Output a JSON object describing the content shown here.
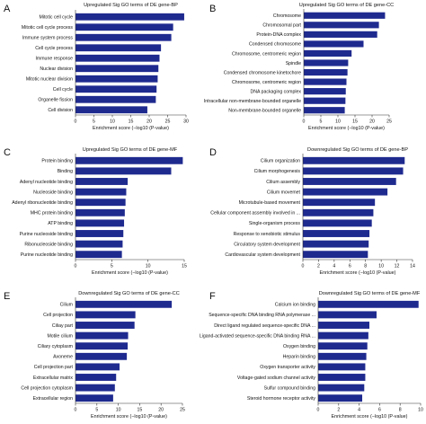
{
  "bar_color": "#1f2a8f",
  "chart_data": [
    {
      "type": "bar",
      "orientation": "horizontal",
      "letter": "A",
      "title": "Upregulated Sig GO terms of DE gene-BP",
      "xlabel": "Enrichment score (−log10 (P-value)",
      "xlim": [
        0,
        30
      ],
      "xticks": [
        0,
        5,
        10,
        15,
        20,
        25,
        30
      ],
      "categories": [
        "Mitotic cell cycle",
        "Mitotic cell cycle process",
        "Immune system process",
        "Cell cycle process",
        "Immune response",
        "Nuclear division",
        "Mitotic nuclear division",
        "Cell cycle",
        "Organelle fission",
        "Cell division"
      ],
      "values": [
        29.5,
        26.5,
        26.0,
        23.2,
        22.8,
        22.5,
        22.3,
        22.0,
        21.8,
        19.5
      ]
    },
    {
      "type": "bar",
      "orientation": "horizontal",
      "letter": "B",
      "title": "Upregulated Sig GO terms of DE gene-CC",
      "xlabel": "Enrichment score (−log10 (P-value)",
      "xlim": [
        0,
        25
      ],
      "xticks": [
        0,
        5,
        10,
        15,
        20,
        25
      ],
      "categories": [
        "Chromosome",
        "Chromosomal part",
        "Protein-DNA complex",
        "Condensed chromosome",
        "Chromosome, centromeric region",
        "Spindle",
        "Condensed chromosome kinetochore",
        "Chromosome, centromeric region",
        "DNA packaging complex",
        "Intracellular non-membrane-bounded organelle",
        "Non-membrane-bounded organelle"
      ],
      "values": [
        23.8,
        22.0,
        21.5,
        17.5,
        14.0,
        13.0,
        12.8,
        12.5,
        12.3,
        12.2,
        12.0
      ]
    },
    {
      "type": "bar",
      "orientation": "horizontal",
      "letter": "C",
      "title": "Upregulated Sig GO terms of DE gene-MF",
      "xlabel": "Enrichment score (−log10 (P-value)",
      "xlim": [
        0,
        15
      ],
      "xticks": [
        0,
        5,
        10,
        15
      ],
      "categories": [
        "Protein binding",
        "Binding",
        "Adenyl nucleotide binding",
        "Nucleoside binding",
        "Adenyl ribonucleotide binding",
        "MHC protein binding",
        "ATP binding",
        "Purine nucleoside binding",
        "Ribonucleoside binding",
        "Purine nucleotide binding"
      ],
      "values": [
        14.8,
        13.2,
        7.2,
        7.0,
        6.9,
        6.8,
        6.7,
        6.6,
        6.5,
        6.4
      ]
    },
    {
      "type": "bar",
      "orientation": "horizontal",
      "letter": "D",
      "title": "Downregulated Sig GO terms of DE gene-BP",
      "xlabel": "Enrichment score (−log10 (P-value)",
      "xlim": [
        0,
        14
      ],
      "xticks": [
        0,
        2,
        4,
        6,
        8,
        10,
        12,
        14
      ],
      "categories": [
        "Cilium organization",
        "Cilium morphogenesis",
        "Cilium assembly",
        "Cilium movemet",
        "Microtubule-based movement",
        "Cellular component assembly involved in ...",
        "Single-organism process",
        "Response to xenobiotic stimulus",
        "Circulatory system development",
        "Cardiovascular system development"
      ],
      "values": [
        13.0,
        12.8,
        11.9,
        10.8,
        9.2,
        9.0,
        8.8,
        8.5,
        8.4,
        8.3
      ]
    },
    {
      "type": "bar",
      "orientation": "horizontal",
      "letter": "E",
      "title": "Downregulated Sig GO terms of DE gene-CC",
      "xlabel": "Enrichment score (−log10 (P-value)",
      "xlim": [
        0,
        25
      ],
      "xticks": [
        0,
        5,
        10,
        15,
        20,
        25
      ],
      "categories": [
        "Cilium",
        "Cell projection",
        "Ciliay part",
        "Motile cilium",
        "Ciliary cytoplasm",
        "Axoneme",
        "Cell projection part",
        "Extracellular matrix",
        "Cell projection cytoplasm",
        "Extracellular region"
      ],
      "values": [
        22.5,
        14.0,
        13.8,
        12.3,
        12.2,
        12.0,
        10.3,
        9.5,
        9.2,
        8.8
      ]
    },
    {
      "type": "bar",
      "orientation": "horizontal",
      "letter": "F",
      "title": "Downregulated Sig GO terms of DE gene-MF",
      "xlabel": "Enrichment score (−log10 (P-value)",
      "xlim": [
        0,
        10
      ],
      "xticks": [
        0,
        2,
        4,
        6,
        8,
        10
      ],
      "categories": [
        "Calcium ion binding",
        "Sequence-specific DNA binding RNA polymerase ...",
        "Direct ligand regulated sequence-specific DNA ...",
        "Ligand-activated sequence-specific DNA binding RNA ...",
        "Oxygen binding",
        "Heparin binding",
        "Oxygen transporter activity",
        "Voltage-gated sodium channel activity",
        "Sulfur compound binding",
        "Steroid hormone receptor activity"
      ],
      "values": [
        9.8,
        5.7,
        5.0,
        4.9,
        4.8,
        4.7,
        4.6,
        4.6,
        4.5,
        4.3
      ]
    }
  ]
}
